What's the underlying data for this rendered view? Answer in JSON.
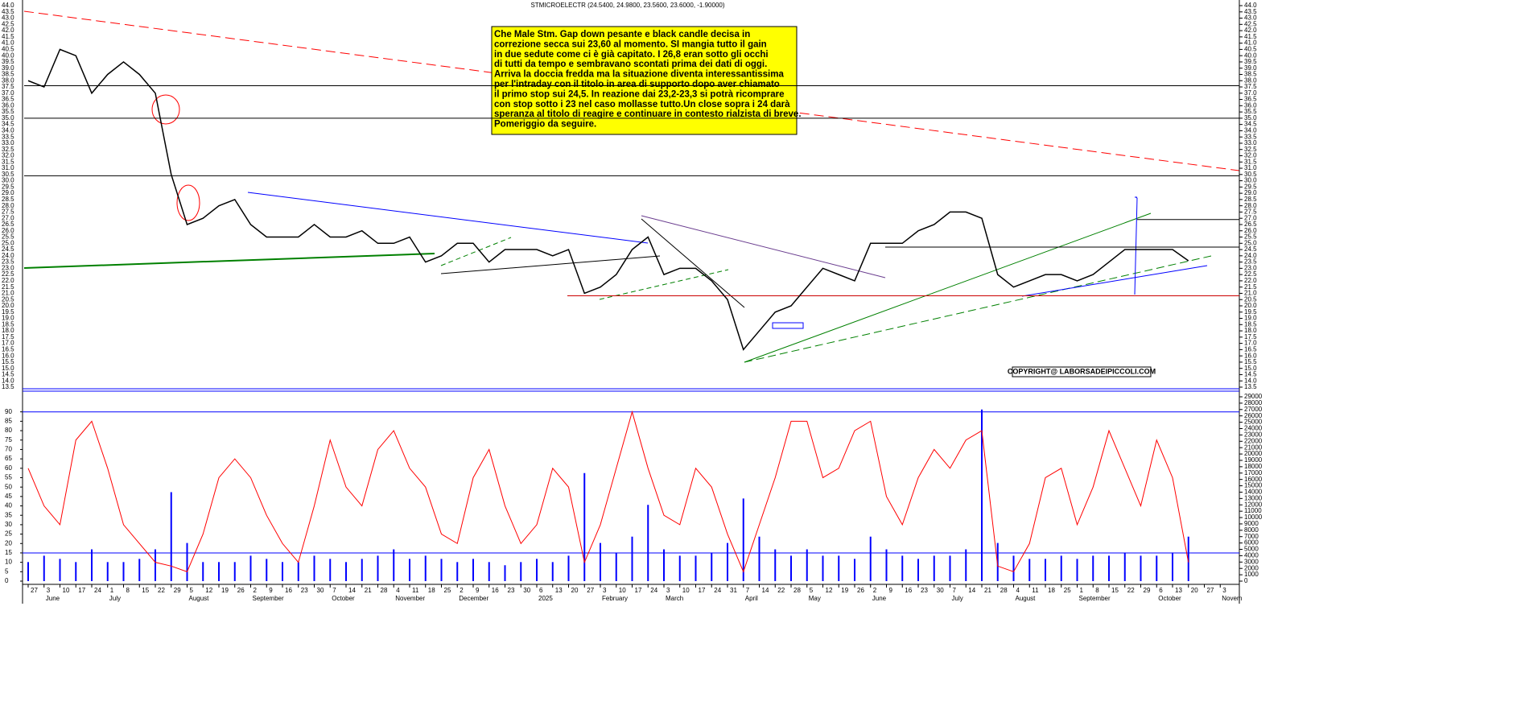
{
  "chart_data": [
    {
      "type": "line",
      "title": "STMICROELECTR (24.5400, 24.9800, 23.5600, 23.6000, -1.90000)",
      "values": [
        38.0,
        37.5,
        40.5,
        40.0,
        37.0,
        38.5,
        39.5,
        38.5,
        37.0,
        30.5,
        26.5,
        27.0,
        28.0,
        28.5,
        26.5,
        25.5,
        25.5,
        25.5,
        26.5,
        25.5,
        25.5,
        26.0,
        25.0,
        25.0,
        25.5,
        23.5,
        24.0,
        25.0,
        25.0,
        23.5,
        24.5,
        24.5,
        24.5,
        24.0,
        24.5,
        21.0,
        21.5,
        22.5,
        24.5,
        25.5,
        22.5,
        23.0,
        23.0,
        22.0,
        20.5,
        16.5,
        18.0,
        19.5,
        20.0,
        21.5,
        23.0,
        22.5,
        22.0,
        25.0,
        25.0,
        25.0,
        26.0,
        26.5,
        27.5,
        27.5,
        27.0,
        22.5,
        21.5,
        22.0,
        22.5,
        22.5,
        22.0,
        22.5,
        23.5,
        24.5,
        24.5,
        24.5,
        24.5,
        23.6,
        null,
        null
      ],
      "color": "#000000",
      "ylim": [
        13.5,
        44
      ],
      "yticks": [
        13.5,
        {
          "value": 14,
          "label": "14.0"
        },
        14.5,
        {
          "value": 15,
          "label": "15.0"
        },
        15.5,
        {
          "value": 16,
          "label": "16.0"
        },
        16.5,
        {
          "value": 17,
          "label": "17.0"
        },
        17.5,
        {
          "value": 18,
          "label": "18.0"
        },
        18.5,
        {
          "value": 19,
          "label": "19.0"
        },
        19.5,
        {
          "value": 20,
          "label": "20.0"
        },
        20.5,
        {
          "value": 21,
          "label": "21.0"
        },
        21.5,
        {
          "value": 22,
          "label": "22.0"
        },
        22.5,
        {
          "value": 23,
          "label": "23.0"
        },
        23.5,
        {
          "value": 24,
          "label": "24.0"
        },
        24.5,
        {
          "value": 25,
          "label": "25.0"
        },
        25.5,
        {
          "value": 26,
          "label": "26.0"
        },
        26.5,
        {
          "value": 27,
          "label": "27.0"
        },
        27.5,
        {
          "value": 28,
          "label": "28.0"
        },
        28.5,
        {
          "value": 29,
          "label": "29.0"
        },
        29.5,
        {
          "value": 30,
          "label": "30.0"
        },
        30.5,
        {
          "value": 31,
          "label": "31.0"
        },
        31.5,
        {
          "value": 32,
          "label": "32.0"
        },
        32.5,
        {
          "value": 33,
          "label": "33.0"
        },
        33.5,
        {
          "value": 34,
          "label": "34.0"
        },
        34.5,
        {
          "value": 35,
          "label": "35.0"
        },
        35.5,
        {
          "value": 36,
          "label": "36.0"
        },
        36.5,
        {
          "value": 37,
          "label": "37.0"
        },
        37.5,
        {
          "value": 38,
          "label": "38.0"
        },
        38.5,
        {
          "value": 39,
          "label": "39.0"
        },
        39.5,
        {
          "value": 40,
          "label": "40.0"
        },
        40.5,
        {
          "value": 41,
          "label": "41.0"
        },
        41.5,
        {
          "value": 42,
          "label": "42.0"
        },
        42.5,
        {
          "value": 43,
          "label": "43.0"
        },
        43.5,
        {
          "value": 44,
          "label": "44.0"
        }
      ],
      "hlines": [
        {
          "value": 37.6,
          "color": "#000000"
        },
        {
          "value": 35.0,
          "color": "#000000"
        },
        {
          "value": 30.4,
          "color": "#000000"
        },
        {
          "value": 26.9,
          "color": "#000000"
        },
        {
          "value": 24.7,
          "color": "#000000"
        },
        {
          "value": 20.8,
          "color": "#cc0000"
        }
      ],
      "annotation": [
        "Che Male Stm. Gap down pesante e black candle decisa in",
        "correzione secca sui 23,60 al momento. SI mangia tutto il gain",
        "in due sedute come ci è già capitato. I 26,8 eran sotto gli occhi",
        "di tutti da tempo e sembravano scontati prima dei dati di oggi.",
        "Arriva la doccia fredda ma la situazione diventa interessantissima",
        "per l'intraday con il titolo in area di supporto dopo aver chiamato",
        "il primo stop sui 24,5. In reazione dai 23,2-23,3 si potrà ricomprare",
        "con stop sotto i 23 nel caso mollasse tutto.Un close sopra i 24 darà",
        "speranza al titolo di reagire e continuare in contesto rialzista di breve.",
        "Pomeriggio da seguire."
      ],
      "copyright": "COPYRIGHT@ LABORSADEIPICCOLI.COM"
    },
    {
      "type": "bar-line",
      "categories": [
        27,
        3,
        10,
        17,
        24,
        1,
        8,
        15,
        22,
        29,
        5,
        12,
        19,
        26,
        2,
        9,
        16,
        23,
        30,
        7,
        14,
        21,
        28,
        4,
        11,
        18,
        25,
        2,
        9,
        16,
        23,
        30,
        6,
        13,
        20,
        27,
        3,
        10,
        17,
        24,
        3,
        10,
        17,
        24,
        31,
        7,
        14,
        22,
        28,
        5,
        12,
        19,
        26,
        2,
        9,
        16,
        23,
        30,
        7,
        14,
        21,
        28,
        4,
        11,
        18,
        25,
        1,
        8,
        15,
        22,
        29,
        6,
        13,
        20,
        27,
        3
      ],
      "months": [
        null,
        "June",
        null,
        null,
        null,
        "July",
        null,
        null,
        null,
        null,
        "August",
        null,
        null,
        null,
        "September",
        null,
        null,
        null,
        null,
        "October",
        null,
        null,
        null,
        "November",
        null,
        null,
        null,
        "December",
        null,
        null,
        null,
        null,
        "2025",
        null,
        null,
        null,
        "February",
        null,
        null,
        null,
        "March",
        null,
        null,
        null,
        null,
        "April",
        null,
        null,
        null,
        "May",
        null,
        null,
        null,
        "June",
        null,
        null,
        null,
        null,
        "July",
        null,
        null,
        null,
        "August",
        null,
        null,
        null,
        "September",
        null,
        null,
        null,
        null,
        "October",
        null,
        null,
        null,
        "Novem"
      ],
      "series": [
        {
          "color": "#0000ff",
          "axis": "y2",
          "values": [
            3000,
            4000,
            3500,
            3000,
            5000,
            3000,
            3000,
            3500,
            5000,
            14000,
            6000,
            3000,
            3000,
            3000,
            4000,
            3500,
            3000,
            3000,
            4000,
            3500,
            3000,
            3500,
            4000,
            5000,
            3500,
            4000,
            3500,
            3000,
            3500,
            3000,
            2500,
            3000,
            3500,
            3000,
            4000,
            17000,
            6000,
            4500,
            7000,
            12000,
            5000,
            4000,
            4000,
            4500,
            6000,
            13000,
            7000,
            5000,
            4000,
            5000,
            4000,
            4000,
            3500,
            7000,
            5000,
            4000,
            3500,
            4000,
            4000,
            5000,
            27000,
            6000,
            4000,
            3500,
            3500,
            4000,
            3500,
            4000,
            4000,
            4500,
            4000,
            4000,
            4500,
            7000,
            null,
            null
          ]
        },
        {
          "color": "#ff0000",
          "axis": "y",
          "values": [
            60,
            40,
            30,
            75,
            85,
            60,
            30,
            20,
            10,
            8,
            5,
            25,
            55,
            65,
            55,
            35,
            20,
            10,
            40,
            75,
            50,
            40,
            70,
            80,
            60,
            50,
            25,
            20,
            55,
            70,
            40,
            20,
            30,
            60,
            50,
            10,
            30,
            60,
            90,
            60,
            35,
            30,
            60,
            50,
            25,
            5,
            30,
            55,
            85,
            85,
            55,
            60,
            80,
            85,
            45,
            30,
            55,
            70,
            60,
            75,
            80,
            8,
            5,
            20,
            55,
            60,
            30,
            50,
            80,
            60,
            40,
            75,
            55,
            10,
            null,
            null
          ]
        }
      ],
      "ylim": [
        0,
        98
      ],
      "yticks": [
        0,
        5,
        10,
        15,
        20,
        25,
        30,
        35,
        40,
        45,
        50,
        55,
        60,
        65,
        70,
        75,
        80,
        85,
        90
      ],
      "y2lim": [
        0,
        29000
      ],
      "y2ticks": [
        0,
        1000,
        2000,
        3000,
        4000,
        5000,
        6000,
        7000,
        8000,
        9000,
        10000,
        11000,
        12000,
        13000,
        14000,
        15000,
        16000,
        17000,
        18000,
        19000,
        20000,
        21000,
        22000,
        23000,
        24000,
        25000,
        26000,
        27000,
        28000,
        29000
      ],
      "levels": [
        90,
        15
      ],
      "levels_color": "#0000ff"
    }
  ]
}
